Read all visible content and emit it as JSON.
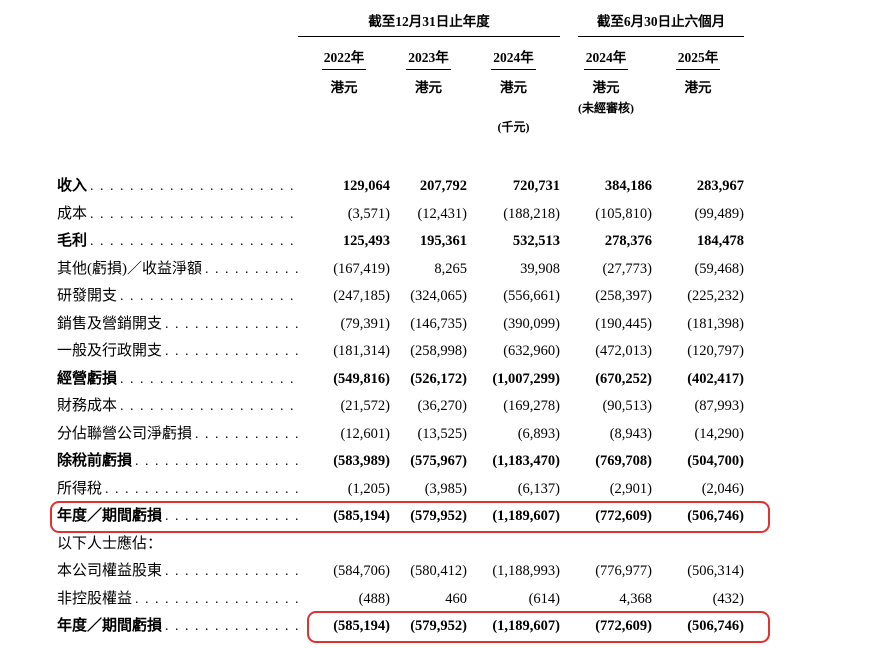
{
  "header": {
    "group_annual": "截至12月31日止年度",
    "group_interim": "截至6月30日止六個月",
    "columns": [
      {
        "year": "2022年",
        "currency": "港元"
      },
      {
        "year": "2023年",
        "currency": "港元"
      },
      {
        "year": "2024年",
        "currency": "港元",
        "unit_note": "(千元)"
      },
      {
        "year": "2024年",
        "currency": "港元",
        "audit_note": "(未經審核)"
      },
      {
        "year": "2025年",
        "currency": "港元"
      }
    ]
  },
  "colors": {
    "highlight_red": "#e03232",
    "rule_black": "#000000",
    "text": "#000000",
    "background": "#ffffff"
  },
  "rows": [
    {
      "label": "收入",
      "bold": true,
      "dots": true,
      "values": [
        "129,064",
        "207,792",
        "720,731",
        "384,186",
        "283,967"
      ]
    },
    {
      "label": "成本",
      "bold": false,
      "dots": true,
      "values": [
        "(3,571)",
        "(12,431)",
        "(188,218)",
        "(105,810)",
        "(99,489)"
      ]
    },
    {
      "label": "毛利",
      "bold": true,
      "dots": true,
      "values": [
        "125,493",
        "195,361",
        "532,513",
        "278,376",
        "184,478"
      ]
    },
    {
      "label": "其他(虧損)／收益淨額",
      "bold": false,
      "dots": true,
      "values": [
        "(167,419)",
        "8,265",
        "39,908",
        "(27,773)",
        "(59,468)"
      ]
    },
    {
      "label": "研發開支",
      "bold": false,
      "dots": true,
      "values": [
        "(247,185)",
        "(324,065)",
        "(556,661)",
        "(258,397)",
        "(225,232)"
      ]
    },
    {
      "label": "銷售及營銷開支",
      "bold": false,
      "dots": true,
      "values": [
        "(79,391)",
        "(146,735)",
        "(390,099)",
        "(190,445)",
        "(181,398)"
      ]
    },
    {
      "label": "一般及行政開支",
      "bold": false,
      "dots": true,
      "values": [
        "(181,314)",
        "(258,998)",
        "(632,960)",
        "(472,013)",
        "(120,797)"
      ]
    },
    {
      "label": "經營虧損",
      "bold": true,
      "dots": true,
      "values": [
        "(549,816)",
        "(526,172)",
        "(1,007,299)",
        "(670,252)",
        "(402,417)"
      ]
    },
    {
      "label": "財務成本",
      "bold": false,
      "dots": true,
      "values": [
        "(21,572)",
        "(36,270)",
        "(169,278)",
        "(90,513)",
        "(87,993)"
      ]
    },
    {
      "label": "分佔聯營公司淨虧損",
      "bold": false,
      "dots": true,
      "values": [
        "(12,601)",
        "(13,525)",
        "(6,893)",
        "(8,943)",
        "(14,290)"
      ]
    },
    {
      "label": "除稅前虧損",
      "bold": true,
      "dots": true,
      "values": [
        "(583,989)",
        "(575,967)",
        "(1,183,470)",
        "(769,708)",
        "(504,700)"
      ]
    },
    {
      "label": "所得稅",
      "bold": false,
      "dots": true,
      "values": [
        "(1,205)",
        "(3,985)",
        "(6,137)",
        "(2,901)",
        "(2,046)"
      ]
    },
    {
      "label": "年度／期間虧損",
      "bold": true,
      "dots": true,
      "highlight": "full",
      "values": [
        "(585,194)",
        "(579,952)",
        "(1,189,607)",
        "(772,609)",
        "(506,746)"
      ]
    },
    {
      "label": "以下人士應佔：",
      "bold": false,
      "dots": false,
      "values": [
        "",
        "",
        "",
        "",
        ""
      ]
    },
    {
      "label": "本公司權益股東",
      "bold": false,
      "dots": true,
      "values": [
        "(584,706)",
        "(580,412)",
        "(1,188,993)",
        "(776,977)",
        "(506,314)"
      ]
    },
    {
      "label": "非控股權益",
      "bold": false,
      "dots": true,
      "values": [
        "(488)",
        "460",
        "(614)",
        "4,368",
        "(432)"
      ]
    },
    {
      "label": "年度／期間虧損",
      "bold": true,
      "dots": true,
      "highlight": "numbers",
      "values": [
        "(585,194)",
        "(579,952)",
        "(1,189,607)",
        "(772,609)",
        "(506,746)"
      ]
    }
  ]
}
